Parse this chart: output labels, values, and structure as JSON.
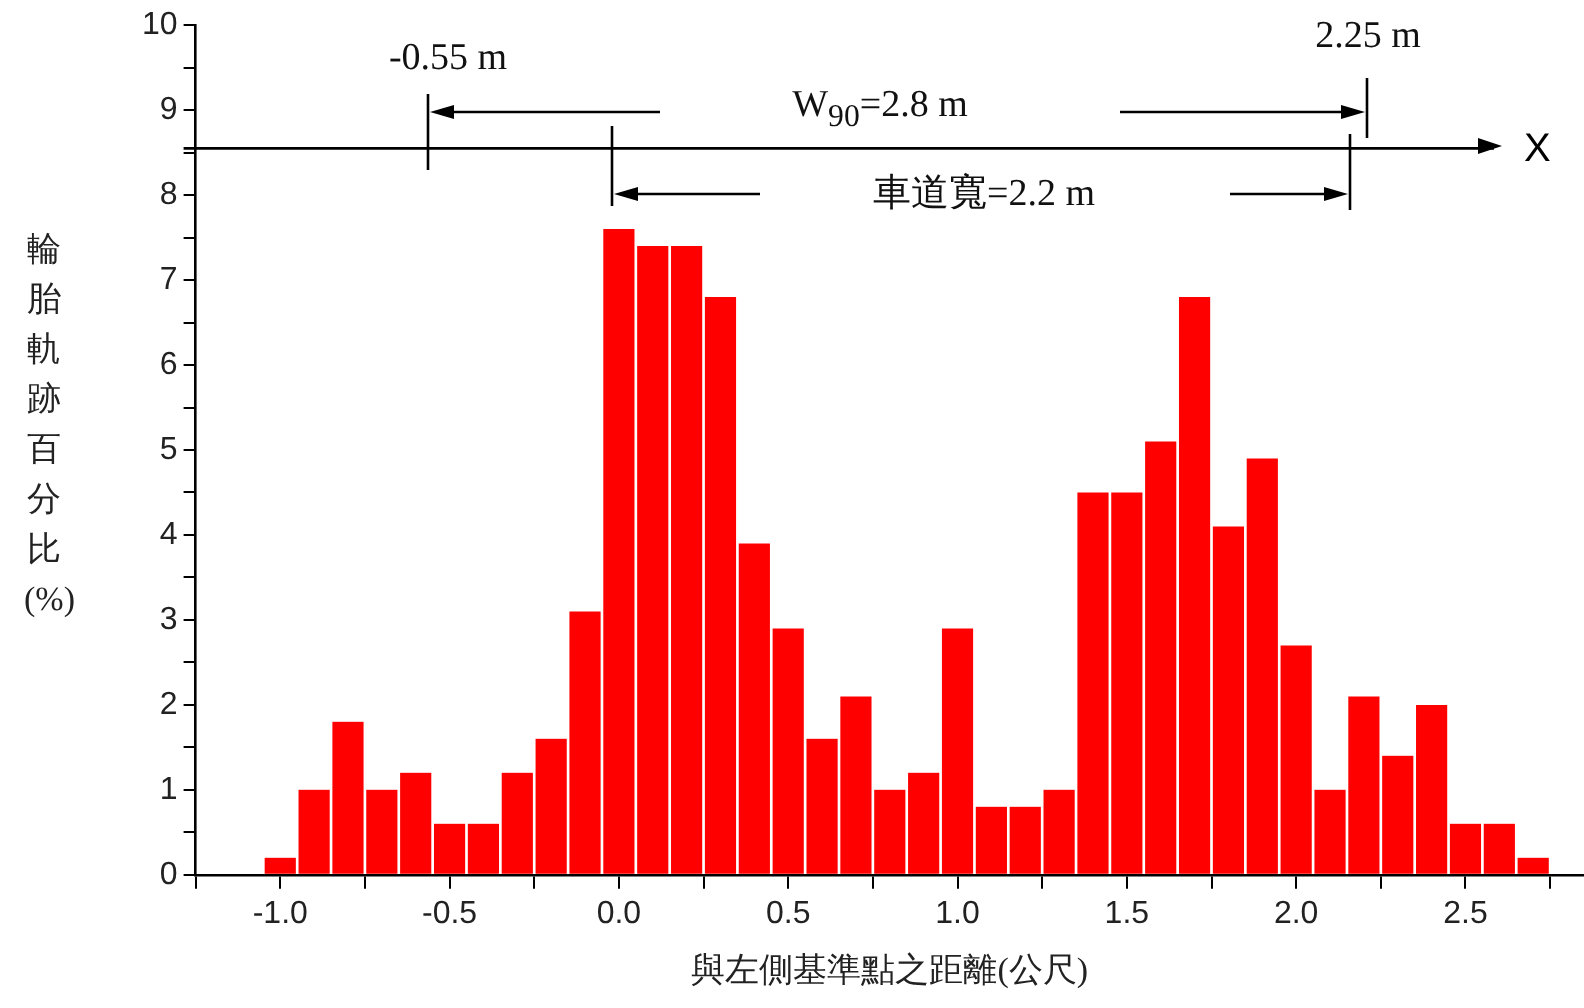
{
  "chart_data": {
    "type": "histogram",
    "xlabel": "與左側基準點之距離(公尺)",
    "ylabel": "輪胎軌跡百分比(%)",
    "bins": [
      -1.05,
      -0.95,
      -0.85,
      -0.75,
      -0.65,
      -0.55,
      -0.45,
      -0.35,
      -0.25,
      -0.15,
      -0.05,
      0.05,
      0.15,
      0.25,
      0.35,
      0.45,
      0.55,
      0.65,
      0.75,
      0.85,
      0.95,
      1.05,
      1.15,
      1.25,
      1.35,
      1.45,
      1.55,
      1.65,
      1.75,
      1.85,
      1.95,
      2.05,
      2.15,
      2.25,
      2.35,
      2.45,
      2.55,
      2.65,
      2.75
    ],
    "values": [
      0.2,
      1.0,
      1.8,
      1.0,
      1.2,
      0.6,
      0.6,
      1.2,
      1.6,
      3.1,
      7.6,
      7.4,
      7.4,
      6.8,
      3.9,
      2.9,
      1.6,
      2.1,
      1.0,
      1.2,
      2.9,
      0.8,
      0.8,
      1.0,
      4.5,
      4.5,
      5.1,
      6.8,
      4.1,
      4.9,
      2.7,
      1.0,
      2.1,
      1.4,
      2.0,
      0.6,
      0.6,
      0.2
    ],
    "color": "#ff0000",
    "xlim": [
      -1.25,
      2.85
    ],
    "xticks": [
      {
        "value": -1.25,
        "label": null
      },
      {
        "value": -1,
        "label": "-1.0"
      },
      {
        "value": -0.75,
        "label": null
      },
      {
        "value": -0.5,
        "label": "-0.5"
      },
      {
        "value": -0.25,
        "label": null
      },
      {
        "value": 0,
        "label": "0.0"
      },
      {
        "value": 0.25,
        "label": null
      },
      0.5,
      {
        "value": 0.75,
        "label": null
      },
      {
        "value": 1,
        "label": "1.0"
      },
      {
        "value": 1.25,
        "label": null
      },
      1.5,
      {
        "value": 1.75,
        "label": null
      },
      {
        "value": 2,
        "label": "2.0"
      },
      {
        "value": 2.25,
        "label": null
      },
      2.5,
      {
        "value": 2.75,
        "label": null
      }
    ],
    "ylim": [
      0,
      10
    ],
    "yticks": [
      0,
      {
        "value": 0.5,
        "label": null
      },
      1,
      {
        "value": 1.5,
        "label": null
      },
      2,
      {
        "value": 2.5,
        "label": null
      },
      3,
      {
        "value": 3.5,
        "label": null
      },
      4,
      {
        "value": 4.5,
        "label": null
      },
      5,
      {
        "value": 5.5,
        "label": null
      },
      6,
      {
        "value": 6.5,
        "label": null
      },
      7,
      {
        "value": 7.5,
        "label": null
      },
      8,
      {
        "value": 8.5,
        "label": null
      },
      9,
      {
        "value": 9.5,
        "label": null
      },
      10
    ],
    "ref_lines": [
      {
        "axis": "y",
        "value": 8.55,
        "label": "X"
      }
    ],
    "annotations": [
      "-0.55 m",
      "W$_{90}$=2.8 m",
      "2.25 m",
      "車道寬=2.2 m"
    ]
  }
}
